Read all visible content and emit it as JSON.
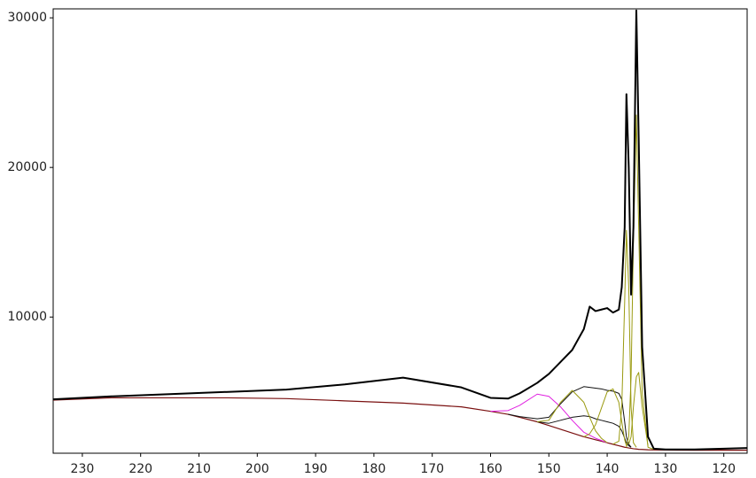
{
  "chart_data": {
    "type": "line",
    "x": [
      235,
      225,
      215,
      205,
      195,
      185,
      175,
      165,
      160,
      157,
      155,
      152,
      150,
      148,
      146,
      144,
      143,
      142,
      141,
      140,
      139,
      138,
      137.5,
      137,
      136.7,
      136.3,
      135.9,
      135.5,
      135,
      134.6,
      134,
      133,
      132,
      130,
      125,
      120,
      116
    ],
    "xlim": [
      235,
      116
    ],
    "xticks": [
      230,
      220,
      210,
      200,
      190,
      180,
      170,
      160,
      150,
      140,
      130,
      120
    ],
    "ylim": [
      900,
      30600
    ],
    "yticks": [
      10000,
      20000,
      30000
    ],
    "series": [
      {
        "color": "#7a1010",
        "width": 1.2,
        "values": [
          4450,
          4600,
          4600,
          4600,
          4550,
          4400,
          4250,
          4000,
          3700,
          3500,
          3300,
          3000,
          2750,
          2500,
          2250,
          2000,
          1900,
          1800,
          1700,
          1600,
          1500,
          1400,
          1350,
          1300,
          1280,
          1250,
          1230,
          1200,
          1180,
          1160,
          1150,
          1130,
          1120,
          1110,
          1100,
          1100,
          1100
        ]
      },
      {
        "color": "#e020e0",
        "width": 1,
        "values": [
          null,
          null,
          null,
          null,
          null,
          null,
          null,
          null,
          3700,
          3750,
          4100,
          4850,
          4700,
          4000,
          3100,
          2300,
          2100,
          1900,
          1750,
          1600,
          null,
          null,
          null,
          null,
          null,
          null,
          null,
          null,
          null,
          null,
          null,
          null,
          null,
          null,
          null,
          null,
          null
        ]
      },
      {
        "color": "#111111",
        "width": 1,
        "values": [
          null,
          null,
          null,
          null,
          null,
          null,
          null,
          null,
          null,
          3500,
          3350,
          3200,
          3300,
          4200,
          5000,
          5350,
          5300,
          5250,
          5200,
          5100,
          5050,
          4900,
          4500,
          3000,
          2000,
          1500,
          1300,
          null,
          null,
          null,
          null,
          null,
          null,
          null,
          null,
          null,
          null
        ]
      },
      {
        "color": "#111111",
        "width": 1,
        "values": [
          null,
          null,
          null,
          null,
          null,
          null,
          null,
          null,
          null,
          null,
          null,
          3000,
          2900,
          3100,
          3300,
          3400,
          3350,
          3200,
          3100,
          3000,
          2900,
          2700,
          2400,
          1900,
          1600,
          1400,
          1300,
          null,
          null,
          null,
          null,
          null,
          null,
          null,
          null,
          null,
          null
        ]
      },
      {
        "color": "#9a9a10",
        "width": 1,
        "values": [
          null,
          null,
          null,
          null,
          null,
          null,
          null,
          null,
          null,
          null,
          null,
          3000,
          3100,
          4300,
          5100,
          4300,
          3300,
          2400,
          1900,
          1600,
          null,
          null,
          null,
          null,
          null,
          null,
          null,
          null,
          null,
          null,
          null,
          null,
          null,
          null,
          null,
          null,
          null
        ]
      },
      {
        "color": "#9a9a10",
        "width": 1,
        "values": [
          null,
          null,
          null,
          null,
          null,
          null,
          null,
          null,
          null,
          null,
          null,
          null,
          null,
          null,
          null,
          2000,
          2200,
          2800,
          3900,
          5000,
          5200,
          4300,
          3000,
          1800,
          1400,
          null,
          null,
          null,
          null,
          null,
          null,
          null,
          null,
          null,
          null,
          null,
          null
        ]
      },
      {
        "color": "#9a9a10",
        "width": 1,
        "values": [
          null,
          null,
          null,
          null,
          null,
          null,
          null,
          null,
          null,
          null,
          null,
          null,
          null,
          null,
          null,
          null,
          null,
          null,
          null,
          null,
          1500,
          1700,
          4000,
          11000,
          15800,
          12000,
          4000,
          1600,
          1300,
          null,
          null,
          null,
          null,
          null,
          null,
          null,
          null
        ]
      },
      {
        "color": "#9a9a10",
        "width": 1,
        "values": [
          null,
          null,
          null,
          null,
          null,
          null,
          null,
          null,
          null,
          null,
          null,
          null,
          null,
          null,
          null,
          null,
          null,
          null,
          null,
          null,
          null,
          null,
          null,
          null,
          1300,
          2000,
          6000,
          15000,
          23500,
          16000,
          5000,
          1300,
          1150,
          null,
          null,
          null,
          null
        ]
      },
      {
        "color": "#9a9a10",
        "width": 1,
        "values": [
          null,
          null,
          null,
          null,
          null,
          null,
          null,
          null,
          null,
          null,
          null,
          null,
          null,
          null,
          null,
          null,
          null,
          null,
          null,
          null,
          null,
          null,
          null,
          null,
          null,
          1500,
          2000,
          4000,
          6000,
          6300,
          4000,
          1400,
          null,
          null,
          null,
          null,
          null
        ]
      },
      {
        "color": "#000000",
        "width": 2,
        "values": [
          4500,
          4700,
          4850,
          5000,
          5150,
          5500,
          5950,
          5300,
          4600,
          4550,
          4900,
          5600,
          6200,
          7000,
          7800,
          9200,
          10700,
          10400,
          10500,
          10600,
          10300,
          10500,
          12000,
          16000,
          24900,
          20000,
          11500,
          16000,
          30500,
          22000,
          8000,
          2000,
          1200,
          1150,
          1150,
          1200,
          1250
        ]
      }
    ]
  }
}
